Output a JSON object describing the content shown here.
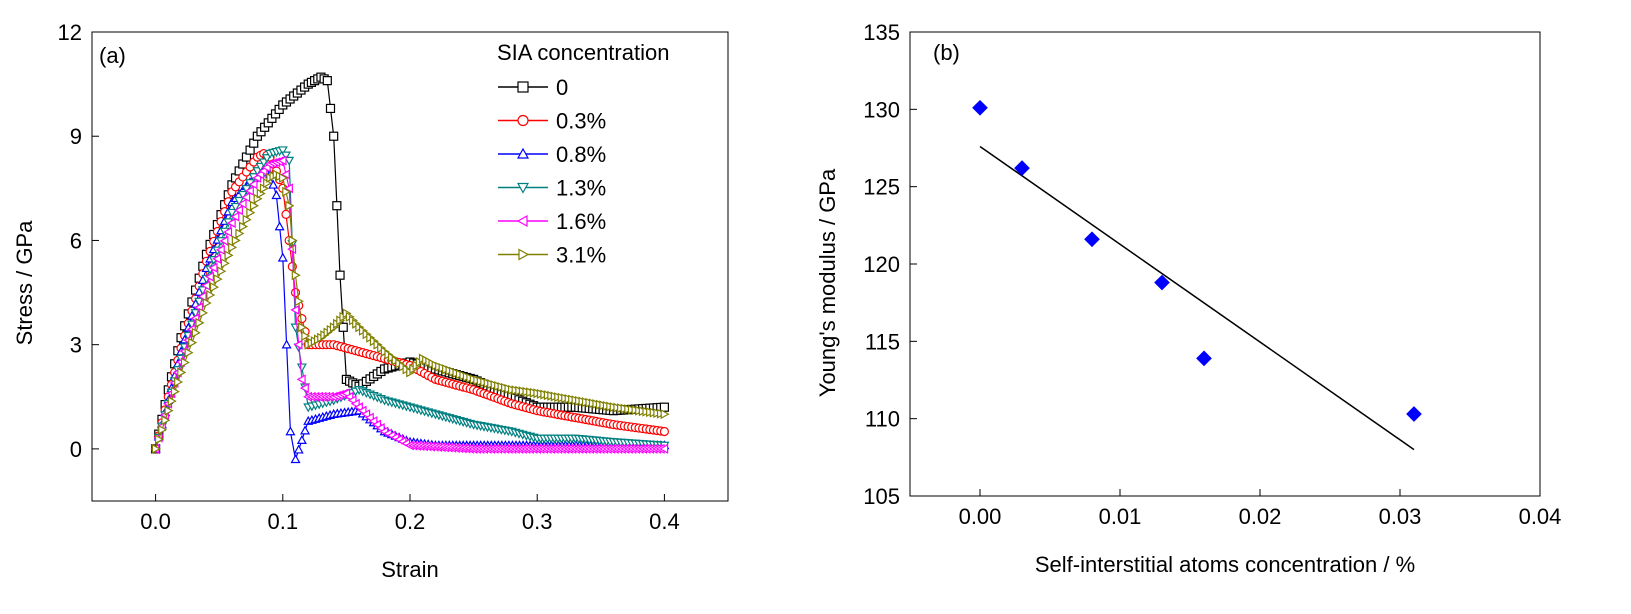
{
  "chart_data": [
    {
      "type": "line",
      "panel_label": "(a)",
      "xlabel": "Strain",
      "ylabel": "Stress / GPa",
      "xlim": [
        -0.05,
        0.45
      ],
      "ylim": [
        -1.5,
        12
      ],
      "xticks": [
        "0.0",
        "0.1",
        "0.2",
        "0.3",
        "0.4"
      ],
      "yticks": [
        "0",
        "3",
        "6",
        "9",
        "12"
      ],
      "legend_title": "SIA concentration",
      "legend_position": "top-right",
      "series": [
        {
          "name": "0",
          "color": "#000000",
          "marker": "square",
          "x": [
            0,
            0.01,
            0.02,
            0.04,
            0.06,
            0.08,
            0.1,
            0.12,
            0.13,
            0.135,
            0.14,
            0.145,
            0.15,
            0.16,
            0.18,
            0.2,
            0.22,
            0.25,
            0.28,
            0.3,
            0.33,
            0.36,
            0.4
          ],
          "y": [
            0,
            1.7,
            3.2,
            5.6,
            7.6,
            9.0,
            9.9,
            10.5,
            10.7,
            10.6,
            9.0,
            5.0,
            2.0,
            1.8,
            2.3,
            2.5,
            2.3,
            2.0,
            1.5,
            1.2,
            1.2,
            1.1,
            1.2
          ]
        },
        {
          "name": "0.3%",
          "color": "#ff0000",
          "marker": "circle",
          "x": [
            0,
            0.01,
            0.02,
            0.04,
            0.06,
            0.08,
            0.085,
            0.09,
            0.095,
            0.1,
            0.105,
            0.11,
            0.12,
            0.14,
            0.16,
            0.18,
            0.2,
            0.22,
            0.25,
            0.28,
            0.3,
            0.33,
            0.36,
            0.4
          ],
          "y": [
            0,
            1.5,
            2.9,
            5.4,
            7.4,
            8.4,
            8.5,
            8.4,
            8.0,
            7.5,
            6.0,
            4.5,
            3.0,
            3.0,
            2.8,
            2.6,
            2.4,
            2.0,
            1.7,
            1.3,
            1.1,
            0.9,
            0.7,
            0.5
          ]
        },
        {
          "name": "0.8%",
          "color": "#0000ff",
          "marker": "triangle-up",
          "x": [
            0,
            0.01,
            0.02,
            0.04,
            0.06,
            0.08,
            0.085,
            0.09,
            0.095,
            0.1,
            0.103,
            0.106,
            0.11,
            0.12,
            0.14,
            0.16,
            0.18,
            0.2,
            0.22,
            0.25,
            0.3,
            0.35,
            0.4
          ],
          "y": [
            0,
            1.4,
            2.8,
            5.2,
            7.1,
            7.9,
            8.0,
            7.9,
            7.3,
            5.5,
            3.0,
            0.5,
            -0.3,
            0.8,
            1.0,
            1.1,
            0.5,
            0.2,
            0.1,
            0.1,
            0.1,
            0.1,
            0.1
          ]
        },
        {
          "name": "1.3%",
          "color": "#008080",
          "marker": "triangle-down",
          "x": [
            0,
            0.01,
            0.02,
            0.04,
            0.06,
            0.08,
            0.09,
            0.1,
            0.105,
            0.11,
            0.12,
            0.14,
            0.16,
            0.18,
            0.2,
            0.22,
            0.25,
            0.28,
            0.3,
            0.33,
            0.36,
            0.4
          ],
          "y": [
            0,
            1.3,
            2.6,
            4.9,
            6.8,
            8.0,
            8.5,
            8.6,
            8.3,
            3.5,
            1.2,
            1.4,
            1.7,
            1.4,
            1.2,
            1.0,
            0.7,
            0.5,
            0.3,
            0.3,
            0.2,
            0.1
          ]
        },
        {
          "name": "1.6%",
          "color": "#ff00ff",
          "marker": "triangle-left",
          "x": [
            0,
            0.01,
            0.02,
            0.04,
            0.06,
            0.08,
            0.09,
            0.1,
            0.105,
            0.11,
            0.115,
            0.12,
            0.14,
            0.15,
            0.16,
            0.18,
            0.2,
            0.25,
            0.3,
            0.35,
            0.4
          ],
          "y": [
            0,
            1.3,
            2.5,
            4.7,
            6.5,
            7.8,
            8.2,
            8.3,
            7.5,
            4.0,
            2.0,
            1.5,
            1.5,
            1.6,
            1.2,
            0.5,
            0.1,
            0.0,
            0.0,
            0.0,
            0.0
          ]
        },
        {
          "name": "3.1%",
          "color": "#808000",
          "marker": "triangle-right",
          "x": [
            0,
            0.01,
            0.02,
            0.04,
            0.06,
            0.08,
            0.09,
            0.095,
            0.1,
            0.105,
            0.11,
            0.115,
            0.12,
            0.13,
            0.14,
            0.15,
            0.16,
            0.18,
            0.2,
            0.21,
            0.22,
            0.25,
            0.28,
            0.3,
            0.33,
            0.36,
            0.4
          ],
          "y": [
            0,
            1.1,
            2.2,
            4.2,
            5.8,
            7.2,
            7.8,
            7.9,
            7.8,
            7.0,
            5.0,
            3.5,
            3.0,
            3.2,
            3.5,
            3.9,
            3.5,
            2.8,
            2.2,
            2.6,
            2.4,
            2.0,
            1.7,
            1.6,
            1.4,
            1.2,
            1.0
          ]
        }
      ]
    },
    {
      "type": "scatter",
      "panel_label": "(b)",
      "xlabel": "Self-interstitial atoms concentration / %",
      "ylabel": "Young's modulus / GPa",
      "xlim": [
        -0.005,
        0.04
      ],
      "ylim": [
        105,
        135
      ],
      "xticks": [
        "0.00",
        "0.01",
        "0.02",
        "0.03",
        "0.04"
      ],
      "yticks": [
        "105",
        "110",
        "115",
        "120",
        "125",
        "130",
        "135"
      ],
      "point_color": "#0000ff",
      "marker": "diamond",
      "points": {
        "x": [
          0.0,
          0.003,
          0.008,
          0.013,
          0.016,
          0.031
        ],
        "y": [
          130.1,
          126.2,
          121.6,
          118.8,
          113.9,
          110.3
        ]
      },
      "fit_line": {
        "x": [
          0.0,
          0.031
        ],
        "y": [
          127.6,
          108.0
        ]
      }
    }
  ]
}
